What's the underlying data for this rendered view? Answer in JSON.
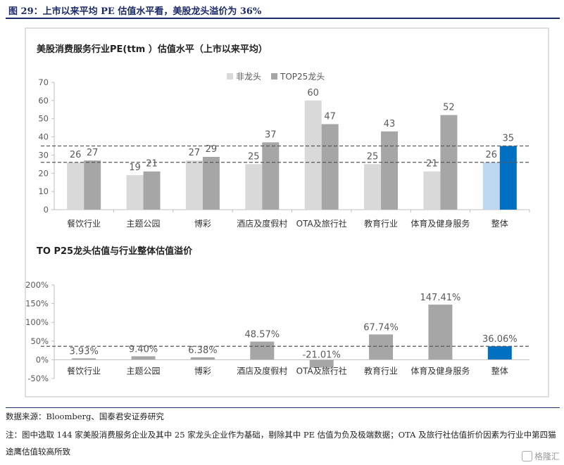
{
  "figure_title": "图 29：上市以来平均 PE 估值水平看，美股龙头溢价为 36%",
  "source": "数据来源：Bloomberg、国泰君安证券研究",
  "note": "注：图中选取 144 家美股消费服务企业及其中 25 家龙头企业作为基础，剔除其中 PE 估值为负及极端数据；OTA 及旅行社估值折价因素为行业中第四猫途鹰估值较高所致",
  "watermark": "格隆汇",
  "colors": {
    "non_leader": "#d9d9d9",
    "leader": "#a6a6a6",
    "total_non_leader": "#bdd7ee",
    "total_leader": "#0070c0",
    "premium": "#a6a6a6",
    "premium_total": "#0070c0",
    "ref_line": "#595959"
  },
  "chart_data": [
    {
      "type": "bar",
      "title": "美股消费服务行业PE(ttm ）估值水平（上市以来平均）",
      "categories": [
        "餐饮行业",
        "主题公园",
        "博彩",
        "酒店及度假村",
        "OTA及旅行社",
        "教育行业",
        "体育及健身服务",
        "整体"
      ],
      "series": [
        {
          "name": "非龙头",
          "values": [
            26,
            19,
            27,
            25,
            60,
            25,
            21,
            26
          ]
        },
        {
          "name": "TOP25龙头",
          "values": [
            27,
            21,
            29,
            37,
            47,
            43,
            52,
            35
          ]
        }
      ],
      "ylim": [
        0,
        70
      ],
      "yticks": [
        0,
        10,
        20,
        30,
        40,
        50,
        60,
        70
      ],
      "reference_lines": [
        35,
        26
      ],
      "legend": "top-center",
      "grid": false
    },
    {
      "type": "bar",
      "title": "TO P25龙头估值与行业整体估值溢价",
      "categories": [
        "餐饮行业",
        "主题公园",
        "博彩",
        "酒店及度假村",
        "OTA及旅行社",
        "教育行业",
        "体育及健身服务",
        "整体"
      ],
      "values": [
        3.93,
        9.4,
        6.38,
        48.57,
        -21.01,
        67.74,
        147.41,
        36.06
      ],
      "labels": [
        "3.93%",
        "9.40%",
        "6.38%",
        "48.57%",
        "-21.01%",
        "67.74%",
        "147.41%",
        "36.06%"
      ],
      "ylim": [
        -50,
        200
      ],
      "yticks": [
        "-50%",
        "0%",
        "50%",
        "100%",
        "150%",
        "200%"
      ],
      "ytick_values": [
        -50,
        0,
        50,
        100,
        150,
        200
      ],
      "reference_lines": [
        36.06
      ],
      "grid": false
    }
  ]
}
